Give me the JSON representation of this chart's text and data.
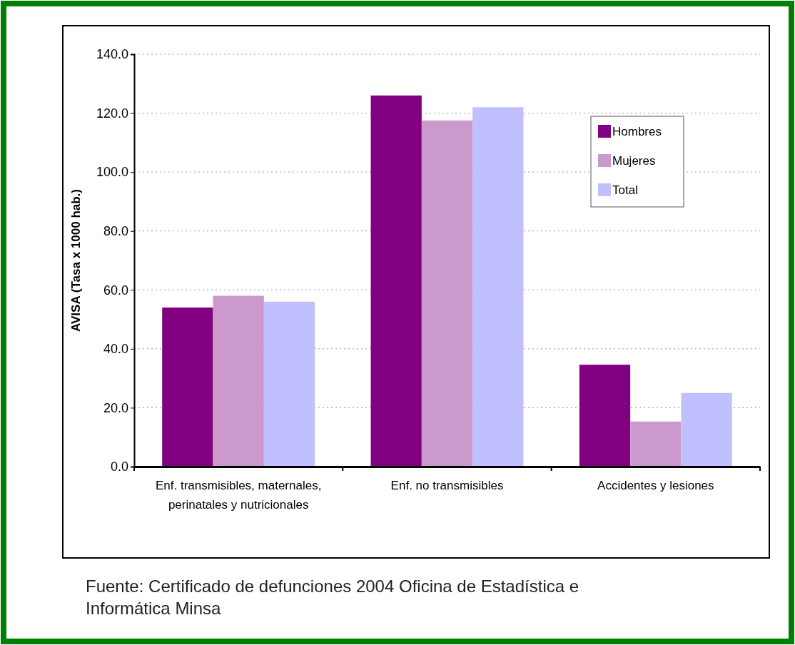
{
  "chart_data": {
    "type": "bar",
    "ylabel": "AVISA (Tasa x 1000 hab.)",
    "categories": [
      "Enf. transmisibles, maternales, perinatales y nutricionales",
      "Enf. no transmisibles",
      "Accidentes y lesiones"
    ],
    "series": [
      {
        "name": "Hombres",
        "color": "#800080",
        "values": [
          54,
          126,
          34.6
        ]
      },
      {
        "name": "Mujeres",
        "color": "#cc99cc",
        "values": [
          58,
          117.5,
          15.3
        ]
      },
      {
        "name": "Total",
        "color": "#c0c0ff",
        "values": [
          56,
          122,
          25
        ]
      }
    ],
    "ylim": [
      0,
      140
    ],
    "yticks": [
      {
        "value": 0,
        "label": "0.0"
      },
      {
        "value": 20,
        "label": "20.0"
      },
      {
        "value": 40,
        "label": "40.0"
      },
      {
        "value": 60,
        "label": "60.0"
      },
      {
        "value": 80,
        "label": "80.0"
      },
      {
        "value": 100,
        "label": "100.0"
      },
      {
        "value": 120,
        "label": "120.0"
      },
      {
        "value": 140,
        "label": "140.0"
      }
    ],
    "grid": "y",
    "legend": "top right",
    "annotations": [
      "Fuente: Certificado de defunciones 2004 Oficina de Estadística e Informática Minsa"
    ]
  }
}
